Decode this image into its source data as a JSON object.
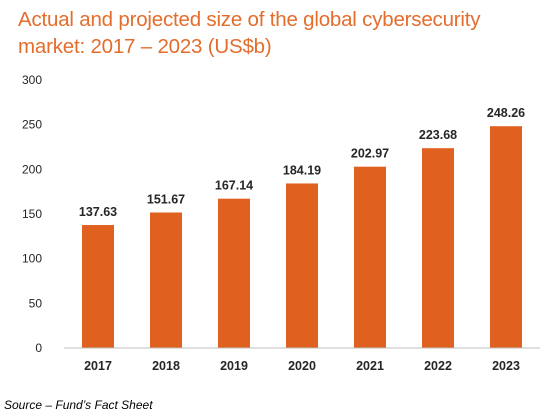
{
  "chart_data": {
    "type": "bar",
    "title": "Actual and projected size of the global cybersecurity market: 2017 – 2023 (US$b)",
    "categories": [
      "2017",
      "2018",
      "2019",
      "2020",
      "2021",
      "2022",
      "2023"
    ],
    "values": [
      137.63,
      151.67,
      167.14,
      184.19,
      202.97,
      223.68,
      248.26
    ],
    "value_labels": [
      "137.63",
      "151.67",
      "167.14",
      "184.19",
      "202.97",
      "223.68",
      "248.26"
    ],
    "xlabel": "",
    "ylabel": "",
    "ylim": [
      0,
      300
    ],
    "yticks": [
      0,
      50,
      100,
      150,
      200,
      250,
      300
    ],
    "grid": false,
    "legend": "none",
    "colors": {
      "bar": "#E0601F",
      "title": "#E46D2B",
      "axis": "#BFBFBF",
      "text": "#262626"
    }
  },
  "source": "Source – Fund’s Fact Sheet"
}
